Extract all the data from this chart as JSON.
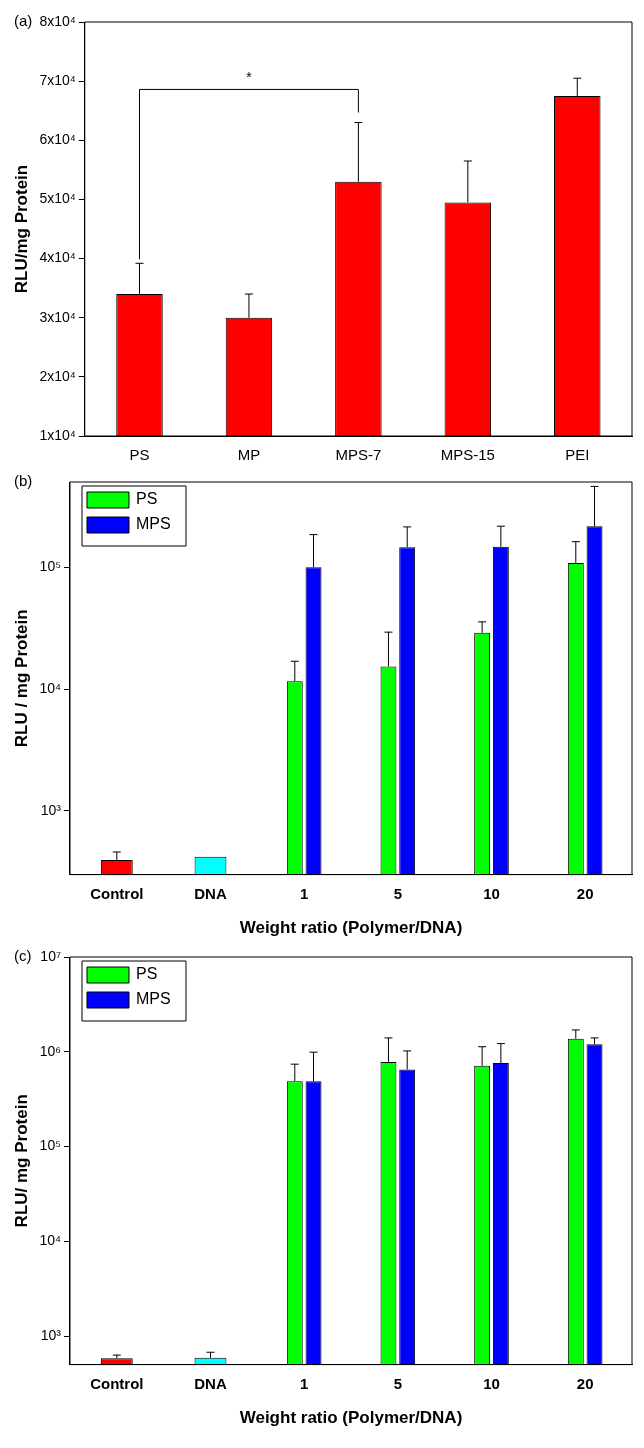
{
  "chart_data": [
    {
      "type": "bar",
      "title": "(a)",
      "ylabel": "RLU/mg Protein",
      "categories": [
        "PS",
        "MP",
        "MPS-7",
        "MPS-15",
        "PEI"
      ],
      "values": [
        34000,
        30000,
        53000,
        49500,
        67500
      ],
      "color": "#ff0000",
      "errors": [
        [
          34000,
          39200
        ],
        [
          30000,
          34000
        ],
        [
          53000,
          63000
        ],
        [
          49500,
          56500
        ],
        [
          67500,
          70500
        ]
      ],
      "ylim": [
        10000,
        80000
      ],
      "yticks": [
        {
          "value": 10000,
          "label": "1x10⁴"
        },
        {
          "value": 20000,
          "label": "2x10⁴"
        },
        {
          "value": 30000,
          "label": "3x10⁴"
        },
        {
          "value": 40000,
          "label": "4x10⁴"
        },
        {
          "value": 50000,
          "label": "5x10⁴"
        },
        {
          "value": 60000,
          "label": "6x10⁴"
        },
        {
          "value": 70000,
          "label": "7x10⁴"
        },
        {
          "value": 80000,
          "label": "8x10⁴"
        }
      ],
      "annotations": [
        "*"
      ]
    },
    {
      "type": "bar",
      "title": "(b)",
      "ylabel": "RLU / mg Protein",
      "xlabel": "Weight ratio (Polymer/DNA)",
      "categories": [
        "Control",
        "DNA",
        "1",
        "5",
        "10",
        "20"
      ],
      "log": true,
      "legend": "top left",
      "series": [
        {
          "color": "#ff0000",
          "colors": [
            "#ff0000",
            "#00ffff",
            null,
            null,
            null,
            null
          ],
          "values": [
            395,
            420,
            null,
            null,
            null,
            null
          ],
          "errors": [
            [
              395,
              460
            ],
            null,
            null,
            null,
            null,
            null
          ]
        },
        {
          "name": "PS",
          "color": "#00ff00",
          "values": [
            null,
            null,
            11600,
            15300,
            28900,
            108000
          ],
          "errors": [
            null,
            null,
            [
              11600,
              16900
            ],
            [
              15300,
              29300
            ],
            [
              28900,
              35600
            ],
            [
              108000,
              162000
            ]
          ]
        },
        {
          "name": "MPS",
          "color": "#0000ff",
          "values": [
            null,
            null,
            100000,
            146000,
            147000,
            217000
          ],
          "errors": [
            null,
            null,
            [
              100000,
              185000
            ],
            [
              146000,
              214000
            ],
            [
              147000,
              217000
            ],
            [
              217000,
              460000
            ]
          ]
        }
      ],
      "ylim": [
        300,
        500000
      ],
      "yticks": [
        {
          "value": 1000,
          "label": "10³"
        },
        {
          "value": 10000,
          "label": "10⁴"
        },
        {
          "value": 100000,
          "label": "10⁵"
        }
      ]
    },
    {
      "type": "bar",
      "title": "(c)",
      "ylabel": "RLU/ mg Protein",
      "xlabel": "Weight ratio (Polymer/DNA)",
      "categories": [
        "Control",
        "DNA",
        "1",
        "5",
        "10",
        "20"
      ],
      "log": true,
      "legend": "top left",
      "series": [
        {
          "color": "#ff0000",
          "colors": [
            "#ff0000",
            "#00ffff",
            null,
            null,
            null,
            null
          ],
          "values": [
            585,
            590,
            null,
            null,
            null,
            null
          ],
          "errors": [
            [
              585,
              630
            ],
            [
              590,
              675
            ],
            null,
            null,
            null,
            null
          ]
        },
        {
          "name": "PS",
          "color": "#00ff00",
          "values": [
            null,
            null,
            490000,
            780000,
            710000,
            1370000
          ],
          "errors": [
            null,
            null,
            [
              490000,
              740000
            ],
            [
              780000,
              1400000
            ],
            [
              710000,
              1130000
            ],
            [
              1370000,
              1700000
            ]
          ]
        },
        {
          "name": "MPS",
          "color": "#0000ff",
          "values": [
            null,
            null,
            490000,
            650000,
            760000,
            1200000
          ],
          "errors": [
            null,
            null,
            [
              490000,
              990000
            ],
            [
              650000,
              1020000
            ],
            [
              760000,
              1220000
            ],
            [
              1200000,
              1400000
            ]
          ]
        }
      ],
      "ylim": [
        500,
        10000000
      ],
      "yticks": [
        {
          "value": 1000,
          "label": "10³"
        },
        {
          "value": 10000,
          "label": "10⁴"
        },
        {
          "value": 100000,
          "label": "10⁵"
        },
        {
          "value": 1000000,
          "label": "10⁶"
        },
        {
          "value": 10000000,
          "label": "10⁷"
        }
      ]
    }
  ]
}
